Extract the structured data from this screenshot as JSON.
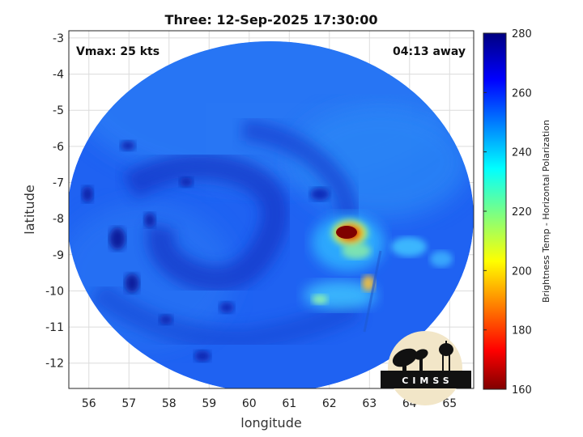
{
  "title": "Three: 12-Sep-2025 17:30:00",
  "annotations": {
    "vmax": "Vmax: 25 kts",
    "time_away": "04:13 away"
  },
  "axes": {
    "xlabel": "longitude",
    "ylabel": "latitude",
    "xlim": [
      55.5,
      65.6
    ],
    "ylim": [
      -12.7,
      -2.8
    ],
    "xticks": [
      "56",
      "57",
      "58",
      "59",
      "60",
      "61",
      "62",
      "63",
      "64",
      "65"
    ],
    "yticks": [
      "-3",
      "-4",
      "-5",
      "-6",
      "-7",
      "-8",
      "-9",
      "-10",
      "-11",
      "-12"
    ],
    "grid": true
  },
  "colorbar": {
    "label": "Brightness Temp - Horizontal Polarization",
    "ticks": [
      "280",
      "260",
      "240",
      "220",
      "200",
      "180",
      "160"
    ],
    "range": [
      160,
      280
    ],
    "colormap": "jet"
  },
  "logo": {
    "text": "CIMSS"
  },
  "colors": {
    "background_swath": "#1e5ef0",
    "deep_convection": "#7f0000",
    "gridline": "#d9d9d9"
  }
}
